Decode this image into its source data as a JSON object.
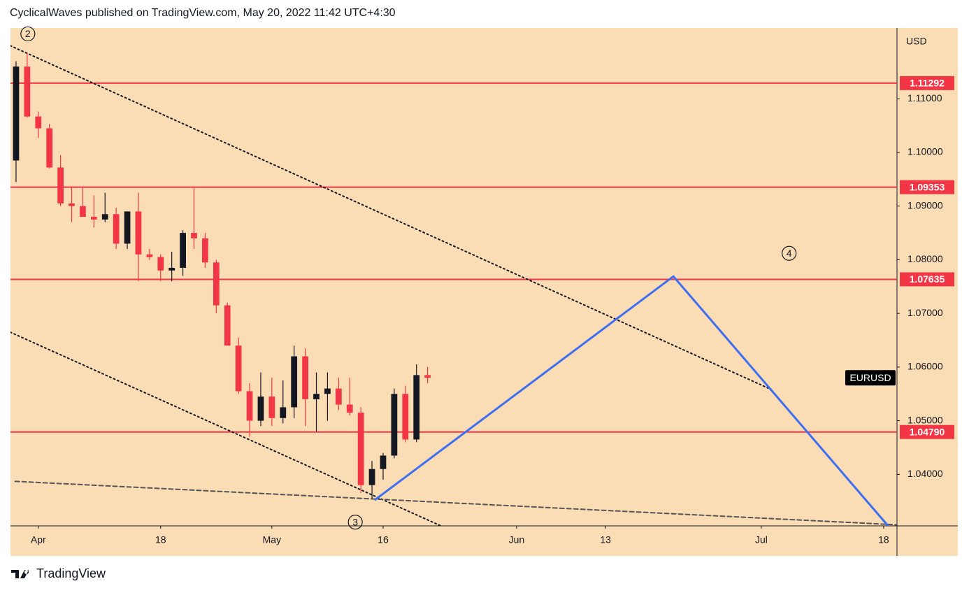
{
  "header": "CyclicalWaves published on TradingView.com, May 20, 2022 11:42 UTC+4:30",
  "footer": "TradingView",
  "chart_data": {
    "type": "candlestick",
    "symbol": "EURUSD",
    "currency": "USD",
    "up_color": "#131722",
    "down_color": "#f23645",
    "x": [
      -2,
      -1,
      0,
      1,
      2,
      3,
      4,
      5,
      6,
      7,
      8,
      9,
      10,
      11,
      12,
      13,
      14,
      15,
      16,
      17,
      18,
      19,
      20,
      21,
      22,
      23,
      24,
      25,
      26,
      27,
      28,
      29,
      30,
      31,
      32,
      33,
      34,
      35
    ],
    "open": [
      1.0985,
      1.116,
      1.1067,
      1.1045,
      1.0972,
      1.0905,
      1.09,
      1.088,
      1.0875,
      1.0885,
      1.083,
      1.089,
      1.081,
      1.0805,
      1.078,
      1.0785,
      1.085,
      1.084,
      1.0795,
      1.0715,
      1.064,
      1.0555,
      1.05,
      1.0545,
      1.0505,
      1.0525,
      1.062,
      1.054,
      1.055,
      1.056,
      1.053,
      1.0515,
      1.038,
      1.041,
      1.0435,
      1.055,
      1.0465,
      1.0585
    ],
    "high": [
      1.117,
      1.1185,
      1.1076,
      1.1053,
      1.0995,
      1.0935,
      1.0935,
      1.092,
      1.0925,
      1.0897,
      1.089,
      1.0925,
      1.082,
      1.081,
      1.0815,
      1.0855,
      1.0935,
      1.085,
      1.08,
      1.072,
      1.0655,
      1.057,
      1.059,
      1.058,
      1.0575,
      1.064,
      1.0635,
      1.059,
      1.059,
      1.058,
      1.058,
      1.0525,
      1.0425,
      1.044,
      1.056,
      1.0565,
      1.0605,
      1.06
    ],
    "low": [
      1.0945,
      1.1065,
      1.1027,
      1.097,
      1.09,
      1.087,
      1.088,
      1.086,
      1.087,
      1.082,
      1.082,
      1.076,
      1.08,
      1.076,
      1.076,
      1.077,
      1.082,
      1.0785,
      1.07,
      1.064,
      1.055,
      1.047,
      1.049,
      1.049,
      1.0495,
      1.0505,
      1.049,
      1.048,
      1.05,
      1.052,
      1.051,
      1.0365,
      1.0355,
      1.039,
      1.043,
      1.046,
      1.046,
      1.057
    ],
    "close": [
      1.116,
      1.1067,
      1.1045,
      1.0972,
      1.0905,
      1.09,
      1.088,
      1.0875,
      1.0885,
      1.083,
      1.089,
      1.081,
      1.0805,
      1.078,
      1.0785,
      1.085,
      1.084,
      1.0795,
      1.0715,
      1.064,
      1.0555,
      1.05,
      1.0545,
      1.0505,
      1.0525,
      1.062,
      1.054,
      1.055,
      1.056,
      1.053,
      1.0515,
      1.038,
      1.041,
      1.0435,
      1.055,
      1.0465,
      1.0585,
      1.058
    ],
    "xlim": [
      -2.5,
      77.2
    ],
    "ylim": [
      1.0304,
      1.1232
    ],
    "xticks": [
      {
        "value": 0,
        "label": "Apr"
      },
      {
        "value": 11,
        "label": "18"
      },
      {
        "value": 21,
        "label": "May"
      },
      {
        "value": 31,
        "label": "16"
      },
      {
        "value": 43,
        "label": "Jun"
      },
      {
        "value": 51,
        "label": "13"
      },
      {
        "value": 65,
        "label": "Jul"
      },
      {
        "value": 76,
        "label": "18"
      }
    ],
    "yticks": [
      {
        "value": 1.04,
        "label": "1.04000"
      },
      {
        "value": 1.05,
        "label": "1.05000"
      },
      {
        "value": 1.06,
        "label": "1.06000"
      },
      {
        "value": 1.07,
        "label": "1.07000"
      },
      {
        "value": 1.08,
        "label": "1.08000"
      },
      {
        "value": 1.09,
        "label": "1.09000"
      },
      {
        "value": 1.1,
        "label": "1.10000"
      },
      {
        "value": 1.11,
        "label": "1.11000"
      }
    ],
    "level_color": "#f23645",
    "levels": [
      1.11292,
      1.09353,
      1.07635,
      {
        "value": 1.0479,
        "label": "1.04790"
      }
    ],
    "trendlines": [
      {
        "style": "dotted",
        "color": "#131722",
        "x": [
          -2.52,
          65.7
        ],
        "y": [
          1.1199,
          1.056
        ]
      },
      {
        "style": "dotted",
        "color": "#131722",
        "x": [
          -2.52,
          36.2
        ],
        "y": [
          1.0665,
          1.0304
        ]
      },
      {
        "style": "dashed",
        "color": "#555555",
        "x": [
          -2.08,
          77.2
        ],
        "y": [
          1.0387,
          1.0306
        ]
      },
      {
        "style": "solid",
        "color": "#3d6ff0",
        "x": [
          30.3,
          57.1,
          76.4
        ],
        "y": [
          1.0353,
          1.0769,
          1.0304
        ]
      }
    ],
    "annotations": [
      {
        "label": "2",
        "x": -0.94,
        "y": 1.1221
      },
      {
        "label": "3",
        "x": 28.5,
        "y": 1.0311
      },
      {
        "label": "4",
        "x": 67.5,
        "y": 1.0812
      }
    ]
  }
}
